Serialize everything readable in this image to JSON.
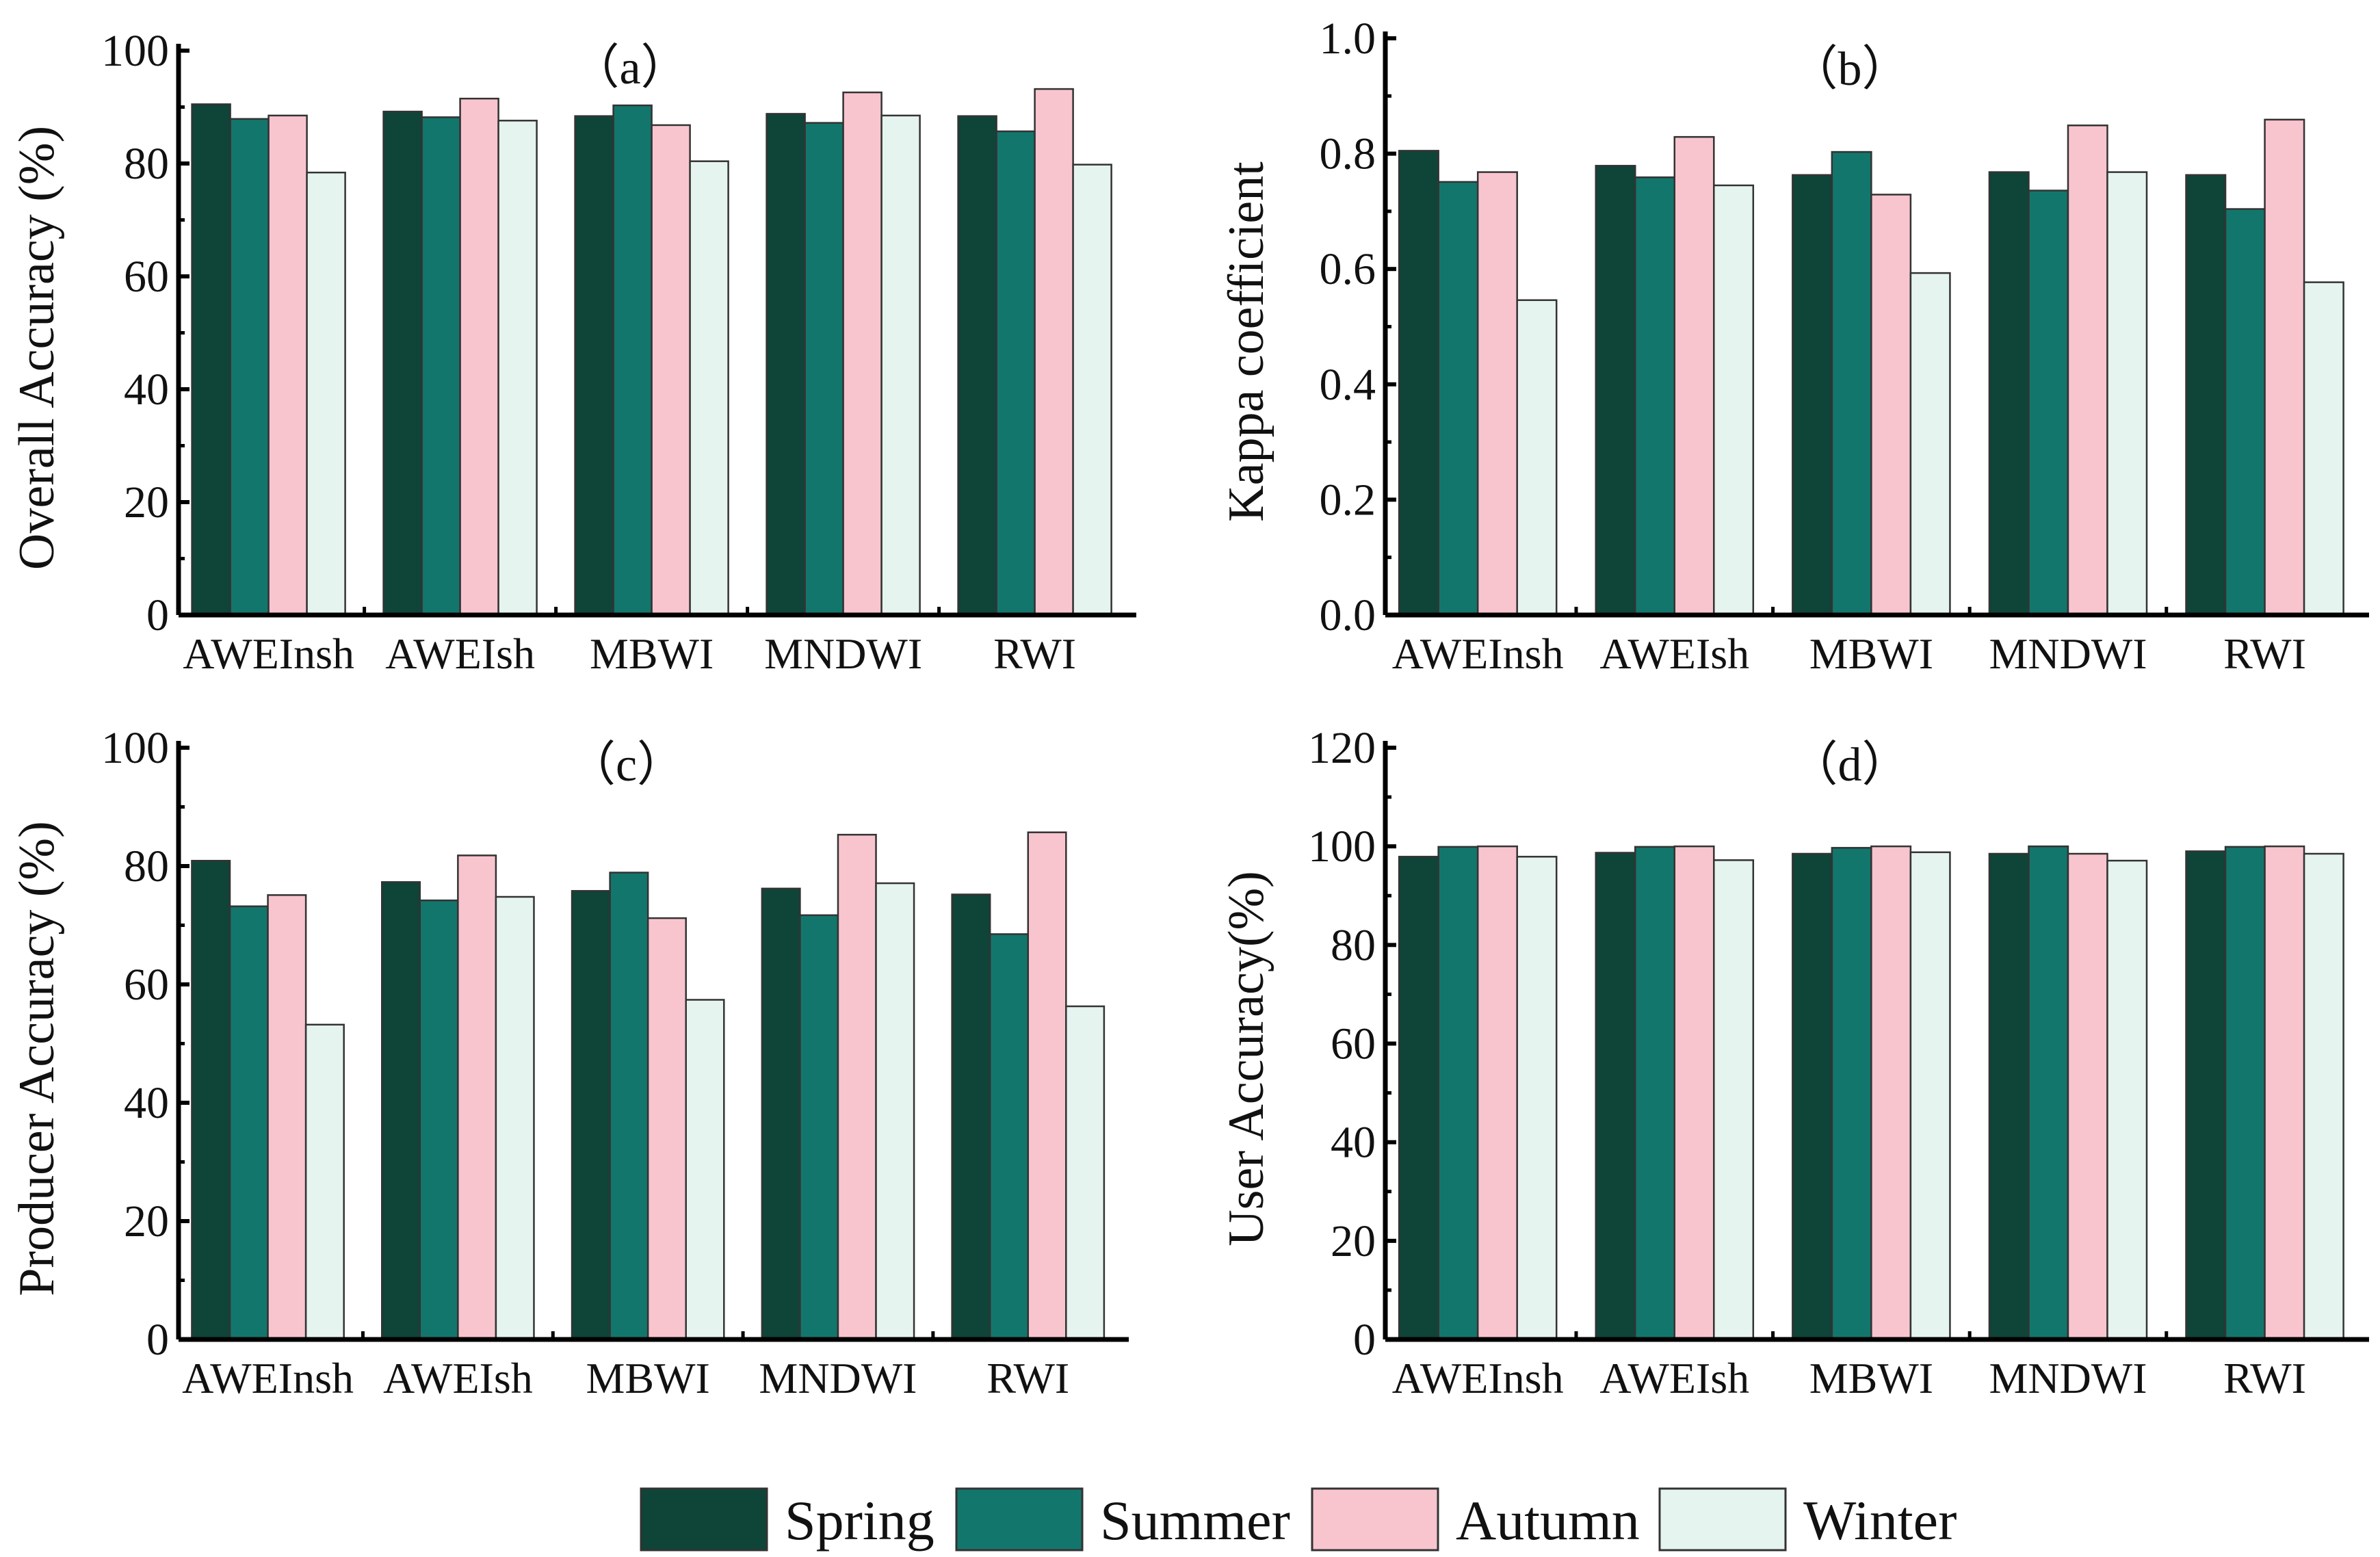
{
  "chart_data": [
    {
      "type": "bar",
      "title": "（a）",
      "xlabel": "",
      "ylabel": "Overall Accuracy (%)",
      "ylim": [
        0,
        100
      ],
      "yticks": [
        0,
        20,
        40,
        60,
        80,
        100
      ],
      "ytick_labels": [
        "0",
        "20",
        "40",
        "60",
        "80",
        "100"
      ],
      "categories": [
        "AWEInsh",
        "AWEIsh",
        "MBWI",
        "MNDWI",
        "RWI"
      ],
      "series": [
        {
          "name": "Spring",
          "values": [
            90.5,
            89.2,
            88.4,
            88.8,
            88.4
          ]
        },
        {
          "name": "Summer",
          "values": [
            87.9,
            88.2,
            90.3,
            87.2,
            85.7
          ]
        },
        {
          "name": "Autumn",
          "values": [
            88.5,
            91.5,
            86.8,
            92.6,
            93.2
          ]
        },
        {
          "name": "Winter",
          "values": [
            78.4,
            87.6,
            80.4,
            88.5,
            79.8
          ]
        }
      ]
    },
    {
      "type": "bar",
      "title": "（b）",
      "xlabel": "",
      "ylabel": "Kappa coefficient",
      "ylim": [
        0,
        1.0
      ],
      "yticks": [
        0,
        0.2,
        0.4,
        0.6,
        0.8,
        1.0
      ],
      "ytick_labels": [
        "0.0",
        "0.2",
        "0.4",
        "0.6",
        "0.8",
        "1.0"
      ],
      "categories": [
        "AWEInsh",
        "AWEIsh",
        "MBWI",
        "MNDWI",
        "RWI"
      ],
      "series": [
        {
          "name": "Spring",
          "values": [
            0.805,
            0.779,
            0.763,
            0.768,
            0.763
          ]
        },
        {
          "name": "Summer",
          "values": [
            0.751,
            0.759,
            0.803,
            0.736,
            0.704
          ]
        },
        {
          "name": "Autumn",
          "values": [
            0.768,
            0.829,
            0.729,
            0.849,
            0.859
          ]
        },
        {
          "name": "Winter",
          "values": [
            0.546,
            0.745,
            0.593,
            0.768,
            0.577
          ]
        }
      ]
    },
    {
      "type": "bar",
      "title": "（c）",
      "xlabel": "",
      "ylabel": "Producer Accuracy (%)",
      "ylim": [
        0,
        100
      ],
      "yticks": [
        0,
        20,
        40,
        60,
        80,
        100
      ],
      "ytick_labels": [
        "0",
        "20",
        "40",
        "60",
        "80",
        "100"
      ],
      "categories": [
        "AWEInsh",
        "AWEIsh",
        "MBWI",
        "MNDWI",
        "RWI"
      ],
      "series": [
        {
          "name": "Spring",
          "values": [
            80.9,
            77.3,
            75.8,
            76.2,
            75.2
          ]
        },
        {
          "name": "Summer",
          "values": [
            73.2,
            74.2,
            78.9,
            71.7,
            68.5
          ]
        },
        {
          "name": "Autumn",
          "values": [
            75.1,
            81.8,
            71.2,
            85.3,
            85.7
          ]
        },
        {
          "name": "Winter",
          "values": [
            53.2,
            74.8,
            57.4,
            77.1,
            56.3
          ]
        }
      ]
    },
    {
      "type": "bar",
      "title": "（d）",
      "xlabel": "",
      "ylabel": "User Accuracy(%)",
      "ylim": [
        0,
        120
      ],
      "yticks": [
        0,
        20,
        40,
        60,
        80,
        100,
        120
      ],
      "ytick_labels": [
        "0",
        "20",
        "40",
        "60",
        "80",
        "100",
        "120"
      ],
      "categories": [
        "AWEInsh",
        "AWEIsh",
        "MBWI",
        "MNDWI",
        "RWI"
      ],
      "series": [
        {
          "name": "Spring",
          "values": [
            97.9,
            98.7,
            98.5,
            98.5,
            99.0
          ]
        },
        {
          "name": "Summer",
          "values": [
            99.9,
            99.9,
            99.7,
            100.0,
            99.9
          ]
        },
        {
          "name": "Autumn",
          "values": [
            100.0,
            100.0,
            100.0,
            98.5,
            100.0
          ]
        },
        {
          "name": "Winter",
          "values": [
            97.9,
            97.2,
            98.8,
            97.1,
            98.5
          ]
        }
      ]
    }
  ],
  "legend": {
    "position": "bottom",
    "items": [
      {
        "name": "Spring",
        "color": "#0f4438"
      },
      {
        "name": "Summer",
        "color": "#13766c"
      },
      {
        "name": "Autumn",
        "color": "#f8c5cf"
      },
      {
        "name": "Winter",
        "color": "#e6f4f0"
      }
    ]
  }
}
